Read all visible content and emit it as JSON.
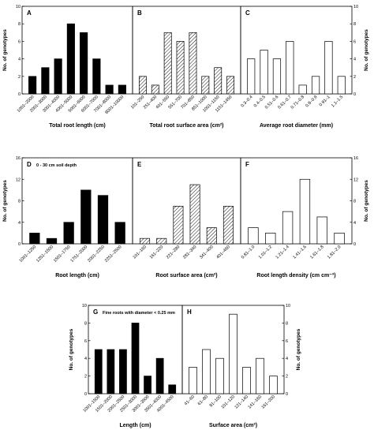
{
  "chart_data": [
    {
      "panel": "A",
      "type": "bar",
      "style": "solid",
      "categories": [
        "1001–2000",
        "2001–3000",
        "3001–4000",
        "4001–5000",
        "5001–6000",
        "6001–7000",
        "7001–8000",
        "8001–10000"
      ],
      "values": [
        2,
        3,
        4,
        8,
        7,
        4,
        1,
        1
      ],
      "xlabel": "Total root length (cm)",
      "ylabel": "No. of genotypes",
      "ylim": [
        0,
        10
      ],
      "yticks": [
        "0",
        "2",
        "4",
        "6",
        "8",
        "10"
      ],
      "annotation": ""
    },
    {
      "panel": "B",
      "type": "bar",
      "style": "hatched",
      "categories": [
        "101–250",
        "251–400",
        "401–550",
        "551–700",
        "701–850",
        "851–1000",
        "1001–1150",
        "1151–1450"
      ],
      "values": [
        2,
        1,
        7,
        6,
        7,
        2,
        3,
        2
      ],
      "xlabel": "Total root surface area (cm²)",
      "ylabel": "",
      "ylim": [
        0,
        10
      ],
      "yticks": [],
      "annotation": ""
    },
    {
      "panel": "C",
      "type": "bar",
      "style": "open",
      "categories": [
        "0.3–0.4",
        "0.4–0.5",
        "0.51–0.6",
        "0.61–0.7",
        "0.71–0.8",
        "0.8–0.9",
        "0.91–1",
        "1.1–1.5"
      ],
      "values": [
        4,
        5,
        4,
        6,
        1,
        2,
        6,
        2
      ],
      "xlabel": "Average root diameter (mm)",
      "ylabel": "No. of genotypes",
      "ylim": [
        0,
        10
      ],
      "yticks": [
        "0",
        "2",
        "4",
        "6",
        "8",
        "10"
      ],
      "annotation": ""
    },
    {
      "panel": "D",
      "type": "bar",
      "style": "solid",
      "categories": [
        "1001–1250",
        "1251–1500",
        "1501–1750",
        "1751–2000",
        "2001–2250",
        "2251–2500"
      ],
      "values": [
        2,
        1,
        4,
        10,
        9,
        4
      ],
      "xlabel": "Root length (cm)",
      "ylabel": "No. of genotypes",
      "ylim": [
        0,
        16
      ],
      "yticks": [
        "0",
        "4",
        "8",
        "12",
        "16"
      ],
      "annotation": "0 - 30 cm soil depth"
    },
    {
      "panel": "E",
      "type": "bar",
      "style": "hatched",
      "categories": [
        "101–160",
        "161–220",
        "221–280",
        "281–340",
        "341–400",
        "401–460"
      ],
      "values": [
        1,
        1,
        7,
        11,
        3,
        7
      ],
      "xlabel": "Root surface area (cm²)",
      "ylabel": "",
      "ylim": [
        0,
        16
      ],
      "yticks": [],
      "annotation": ""
    },
    {
      "panel": "F",
      "type": "bar",
      "style": "open",
      "categories": [
        "0.81–1.0",
        "1.01–1.2",
        "1.21–1.4",
        "1.41–1.6",
        "1.61–1.8",
        "1.81–2.0"
      ],
      "values": [
        3,
        2,
        6,
        12,
        5,
        2
      ],
      "xlabel": "Root length density (cm cm⁻³)",
      "ylabel": "No. of genotypes",
      "ylim": [
        0,
        16
      ],
      "yticks": [
        "0",
        "4",
        "8",
        "12",
        "16"
      ],
      "annotation": ""
    },
    {
      "panel": "G",
      "type": "bar",
      "style": "solid",
      "categories": [
        "1001–1500",
        "1501–2000",
        "2001–2500",
        "2501–3000",
        "3001–3500",
        "3501–4000",
        "4001–4500"
      ],
      "values": [
        5,
        5,
        5,
        8,
        2,
        4,
        1
      ],
      "xlabel": "Length (cm)",
      "ylabel": "No. of genotypes",
      "ylim": [
        0,
        10
      ],
      "yticks": [
        "0",
        "2",
        "4",
        "6",
        "8",
        "10"
      ],
      "annotation": "Fine roots with diameter < 0.25 mm"
    },
    {
      "panel": "H",
      "type": "bar",
      "style": "open",
      "categories": [
        "41–60",
        "61–80",
        "81–100",
        "101–120",
        "121–140",
        "141–160",
        "161–200"
      ],
      "values": [
        3,
        5,
        4,
        9,
        3,
        4,
        2
      ],
      "xlabel": "Surface area (cm²)",
      "ylabel": "No. of genotypes",
      "ylim": [
        0,
        10
      ],
      "yticks": [
        "0",
        "2",
        "4",
        "6",
        "8",
        "10"
      ],
      "annotation": ""
    }
  ]
}
